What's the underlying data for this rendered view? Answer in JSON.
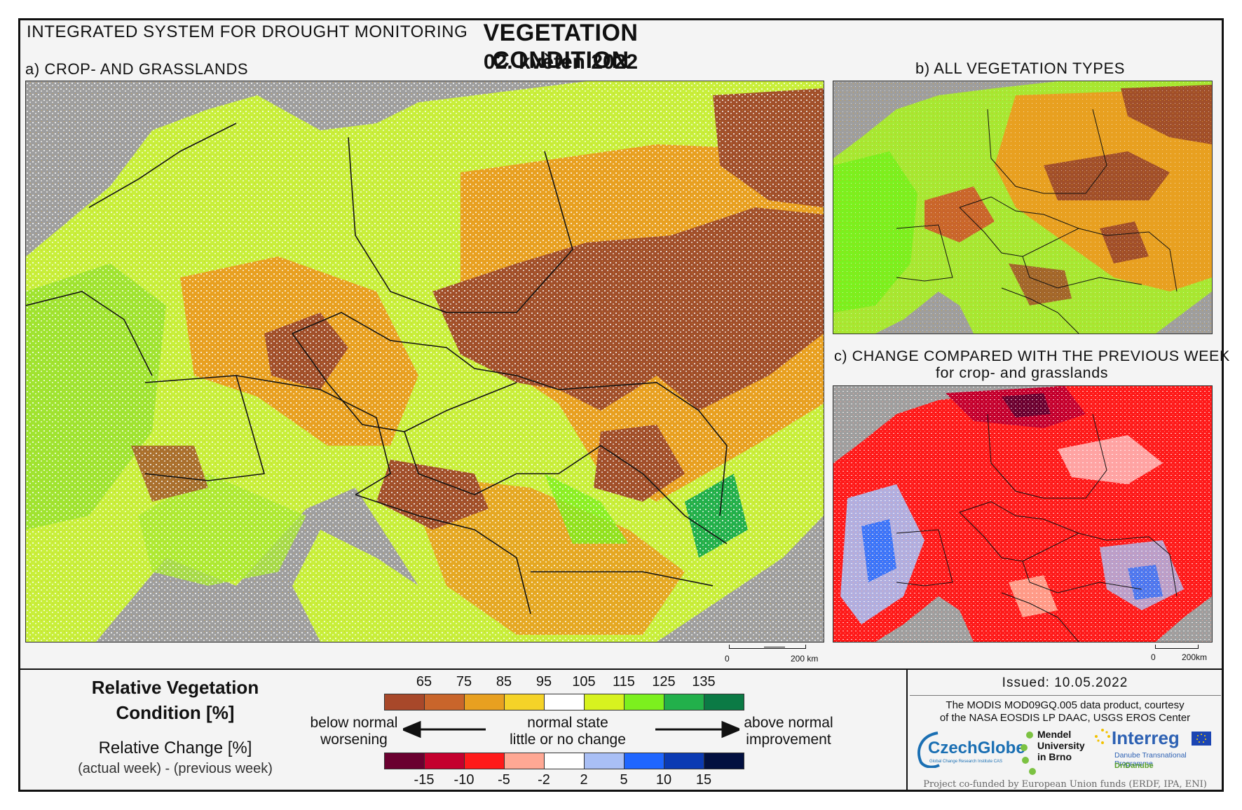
{
  "header": {
    "system": "INTEGRATED SYSTEM FOR DROUGHT MONITORING",
    "title": "VEGETATION CONDITION",
    "date": "02. květen 2022"
  },
  "panels": {
    "a": "a) CROP- AND GRASSLANDS",
    "b": "b) ALL VEGETATION TYPES",
    "c_line1": "c) CHANGE COMPARED WITH THE PREVIOUS WEEK",
    "c_line2": "for crop- and grasslands"
  },
  "scalebars": {
    "a_zero": "0",
    "a_dist": "200 km",
    "c_zero": "0",
    "c_dist": "200km"
  },
  "legend": {
    "rvc_title_line1": "Relative Vegetation",
    "rvc_title_line2": "Condition [%]",
    "rc_title": "Relative Change [%]",
    "rc_sub": "(actual week) - (previous week)",
    "rvc_ticks": [
      "65",
      "75",
      "85",
      "95",
      "105",
      "115",
      "125",
      "135"
    ],
    "rvc_colors": [
      "#a8482a",
      "#c9652b",
      "#e8a020",
      "#f5d328",
      "#ffffff",
      "#d7f21f",
      "#7cf01e",
      "#22b04b",
      "#0b7a45"
    ],
    "rc_ticks": [
      "-15",
      "-10",
      "-5",
      "-2",
      "2",
      "5",
      "10",
      "15"
    ],
    "rc_colors": [
      "#6a0030",
      "#c4002e",
      "#ff1a1a",
      "#ffa894",
      "#ffffff",
      "#a9bff5",
      "#1f66ff",
      "#0b3ab3",
      "#021040"
    ],
    "below_l1": "below normal",
    "below_l2": "worsening",
    "normal_l1": "normal state",
    "normal_l2": "little or no change",
    "above_l1": "above normal",
    "above_l2": "improvement"
  },
  "credits": {
    "issued": "Issued: 10.05.2022",
    "modis_l1": "The MODIS MOD09GQ.005 data product, courtesy",
    "modis_l2": "of the NASA EOSDIS LP DAAC, USGS EROS Center",
    "czechglobe": "CzechGlobe",
    "czechglobe_sub": "Global Change Research Institute CAS",
    "mendel_l1": "Mendel",
    "mendel_l2": "University",
    "mendel_l3": "in Brno",
    "interreg": "Interreg",
    "interreg_l2": "Danube Transnational Programme",
    "interreg_l3": "DriDanube",
    "cofunded": "Project co-funded by European Union funds (ERDF, IPA, ENI)"
  },
  "colors": {
    "sea": "#9e9e9e",
    "drought_brown": "#a14f2a",
    "normal_green": "#c8ef3a"
  }
}
